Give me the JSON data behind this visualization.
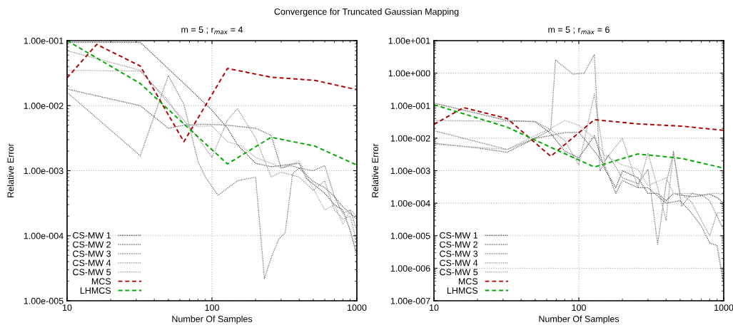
{
  "chart_data": [
    {
      "type": "line",
      "title": "m = 5 ; r$_{max}$ = 4",
      "xlabel": "Number Of Samples",
      "ylabel": "Relative Error",
      "annotations": [
        "Convergence for Truncated Gaussian Mapping"
      ],
      "log": "xy",
      "grid": true,
      "legend": "bottom left",
      "xlim": [
        10,
        1000
      ],
      "xticks": [
        10,
        100,
        1000
      ],
      "ylim": [
        1e-05,
        0.1
      ],
      "yticks": [
        {
          "value": 1e-05,
          "label": "1.00e-005"
        },
        {
          "value": 0.0001,
          "label": "1.00e-004"
        },
        {
          "value": 0.001,
          "label": "1.00e-003"
        },
        {
          "value": 0.01,
          "label": "1.00e-002"
        },
        {
          "value": 0.1,
          "label": "1.00e-001"
        }
      ],
      "series": [
        {
          "name": "CS-MW 1",
          "color": "#404040",
          "line_style": "dotted",
          "x": [
            10,
            16,
            32,
            64,
            100,
            128,
            150,
            200,
            256,
            300,
            400,
            450,
            512,
            600,
            700,
            800,
            900,
            1000
          ],
          "values": [
            0.094,
            0.094,
            0.094,
            0.022,
            0.0085,
            0.0045,
            0.0025,
            0.0013,
            0.00115,
            0.0012,
            0.0013,
            0.00075,
            0.0006,
            0.00045,
            0.0003,
            0.00025,
            0.00012,
            5e-05
          ]
        },
        {
          "name": "CS-MW 2",
          "color": "#555555",
          "line_style": "dotted",
          "x": [
            10,
            32,
            50,
            64,
            90,
            128,
            200,
            256,
            300,
            350,
            400,
            500,
            600,
            700,
            800,
            900,
            1000
          ],
          "values": [
            0.018,
            0.01,
            0.0045,
            0.005,
            0.0052,
            0.005,
            0.0045,
            0.0035,
            0.0011,
            0.0012,
            0.0011,
            0.00068,
            0.00055,
            0.0004,
            0.00028,
            0.00022,
            0.00018
          ]
        },
        {
          "name": "CS-MW 3",
          "color": "#6e6e6e",
          "line_style": "dotted",
          "x": [
            10,
            32,
            50,
            64,
            80,
            90,
            110,
            150,
            200,
            230,
            260,
            290,
            320,
            360,
            400,
            500,
            600,
            700,
            800,
            900,
            1000
          ],
          "values": [
            0.016,
            0.0017,
            0.029,
            0.0105,
            0.0014,
            0.0008,
            0.00042,
            0.0007,
            0.0008,
            2.2e-05,
            5e-05,
            9e-05,
            0.00011,
            0.0009,
            0.0011,
            0.001,
            0.0012,
            0.0004,
            0.00022,
            0.00025,
            0.00012
          ]
        },
        {
          "name": "CS-MW 4",
          "color": "#8a8a8a",
          "line_style": "dotted",
          "x": [
            10,
            32,
            50,
            64,
            80,
            100,
            128,
            150,
            200,
            256,
            300,
            400,
            500,
            600,
            700,
            800,
            900,
            1000
          ],
          "values": [
            0.07,
            0.035,
            0.011,
            0.006,
            0.0032,
            0.0016,
            0.006,
            0.009,
            0.0032,
            0.0008,
            0.00095,
            0.0008,
            0.0005,
            0.0007,
            0.00025,
            0.00018,
            0.0002,
            8e-05
          ]
        },
        {
          "name": "CS-MW 5",
          "color": "#a0a0a0",
          "line_style": "dotted",
          "x": [
            10,
            32,
            50,
            64,
            80,
            100,
            128,
            160,
            200,
            256,
            300,
            400,
            500,
            600,
            700,
            800,
            900,
            1000
          ],
          "values": [
            0.035,
            0.034,
            0.012,
            0.0052,
            0.0048,
            0.0049,
            0.0028,
            0.0024,
            0.0016,
            0.0013,
            0.0011,
            0.0014,
            0.00053,
            0.00025,
            0.0003,
            0.00015,
            0.00025,
            0.0002
          ]
        },
        {
          "name": "MCS",
          "color": "#b00000",
          "line_style": "dashed",
          "x": [
            10,
            16,
            32,
            64,
            128,
            256,
            512,
            1000
          ],
          "values": [
            0.0267,
            0.0875,
            0.0407,
            0.00279,
            0.0374,
            0.0274,
            0.0245,
            0.0176
          ]
        },
        {
          "name": "LHMCS",
          "color": "#00aa00",
          "line_style": "dashed",
          "x": [
            10,
            32,
            64,
            128,
            256,
            512,
            1000
          ],
          "values": [
            0.1,
            0.0219,
            0.00524,
            0.00127,
            0.00327,
            0.00239,
            0.00122
          ]
        }
      ]
    },
    {
      "type": "line",
      "title": "m = 5 ; r$_{max}$ = 6",
      "xlabel": "Number Of Samples",
      "ylabel": "Relative Error",
      "log": "xy",
      "grid": true,
      "legend": "bottom left",
      "xlim": [
        10,
        1000
      ],
      "xticks": [
        10,
        100,
        1000
      ],
      "ylim": [
        1e-07,
        10
      ],
      "yticks": [
        {
          "value": 1e-07,
          "label": "1.00e-007"
        },
        {
          "value": 1e-06,
          "label": "1.00e-006"
        },
        {
          "value": 1e-05,
          "label": "1.00e-005"
        },
        {
          "value": 0.0001,
          "label": "1.00e-004"
        },
        {
          "value": 0.001,
          "label": "1.00e-003"
        },
        {
          "value": 0.01,
          "label": "1.00e-002"
        },
        {
          "value": 0.1,
          "label": "1.00e-001"
        },
        {
          "value": 1,
          "label": "1.00e+000"
        },
        {
          "value": 10,
          "label": "1.00e+001"
        }
      ],
      "series": [
        {
          "name": "CS-MW 1",
          "color": "#404040",
          "line_style": "dotted",
          "x": [
            10,
            32,
            50,
            64,
            80,
            100,
            128,
            150,
            180,
            200,
            256,
            300,
            350,
            400,
            450,
            500,
            600,
            700,
            800,
            900,
            1000
          ],
          "values": [
            0.12,
            0.035,
            0.032,
            0.014,
            0.004,
            0.0025,
            0.012,
            0.0012,
            0.0003,
            0.001,
            0.0006,
            0.0002,
            0.0002,
            0.00012,
            0.0002,
            0.00018,
            0.00016,
            0.00017,
            0.00019,
            0.00015,
            0.0001
          ]
        },
        {
          "name": "CS-MW 2",
          "color": "#555555",
          "line_style": "dotted",
          "x": [
            10,
            20,
            32,
            50,
            64,
            80,
            100,
            128,
            150,
            180,
            200,
            256,
            300,
            400,
            500,
            600,
            700,
            800,
            900,
            1000
          ],
          "values": [
            0.007,
            0.005,
            0.0037,
            0.01,
            0.012,
            0.015,
            0.015,
            0.004,
            0.0015,
            0.0002,
            0.0005,
            0.0003,
            0.0003,
            0.0001,
            0.00012,
            5e-05,
            2e-05,
            6e-06,
            5e-06,
            3e-07
          ]
        },
        {
          "name": "CS-MW 3",
          "color": "#6e6e6e",
          "line_style": "dotted",
          "x": [
            10,
            32,
            50,
            64,
            69,
            91,
            109,
            128,
            140,
            160,
            200,
            256,
            300,
            350,
            400,
            450,
            512,
            600,
            700,
            800,
            900,
            1000
          ],
          "values": [
            0.017,
            0.0045,
            0.01,
            0.018,
            2.56,
            0.93,
            1.0,
            3.8,
            0.001,
            0.003,
            0.0006,
            0.0004,
            0.0011,
            5.5e-06,
            0.0004,
            0.0035,
            8e-05,
            0.0002,
            0.00018,
            0.00012,
            4e-05,
            1.5e-05
          ]
        },
        {
          "name": "CS-MW 4",
          "color": "#8a8a8a",
          "line_style": "dotted",
          "x": [
            10,
            32,
            50,
            64,
            80,
            100,
            128,
            150,
            200,
            256,
            300,
            350,
            400,
            450,
            500,
            600,
            700,
            800,
            900,
            1000
          ],
          "values": [
            0.035,
            0.033,
            0.033,
            0.018,
            0.0085,
            0.0015,
            0.23,
            0.002,
            0.01,
            0.0003,
            0.0035,
            0.0003,
            3e-05,
            0.004,
            0.0002,
            0.00011,
            3e-05,
            1e-05,
            5e-05,
            5e-05
          ]
        },
        {
          "name": "CS-MW 5",
          "color": "#a0a0a0",
          "line_style": "dotted",
          "x": [
            10,
            32,
            50,
            64,
            80,
            100,
            128,
            150,
            200,
            256,
            300,
            400,
            450,
            500,
            600,
            700,
            800,
            900,
            1000
          ],
          "values": [
            0.0065,
            0.0045,
            0.012,
            0.02,
            0.035,
            0.025,
            0.01,
            0.003,
            0.0015,
            0.0011,
            0.00035,
            0.0006,
            0.0002,
            0.0002,
            0.0002,
            0.00018,
            0.0002,
            0.0002,
            0.00018
          ]
        },
        {
          "name": "MCS",
          "color": "#b00000",
          "line_style": "dashed",
          "x": [
            10,
            16,
            32,
            64,
            128,
            256,
            512,
            1000
          ],
          "values": [
            0.0265,
            0.0873,
            0.0403,
            0.00277,
            0.037,
            0.0275,
            0.0235,
            0.0174
          ]
        },
        {
          "name": "LHMCS",
          "color": "#00aa00",
          "line_style": "dashed",
          "x": [
            10,
            32,
            64,
            128,
            256,
            512,
            1000
          ],
          "values": [
            0.107,
            0.0219,
            0.00524,
            0.0013,
            0.00327,
            0.00239,
            0.0012
          ]
        }
      ]
    }
  ]
}
